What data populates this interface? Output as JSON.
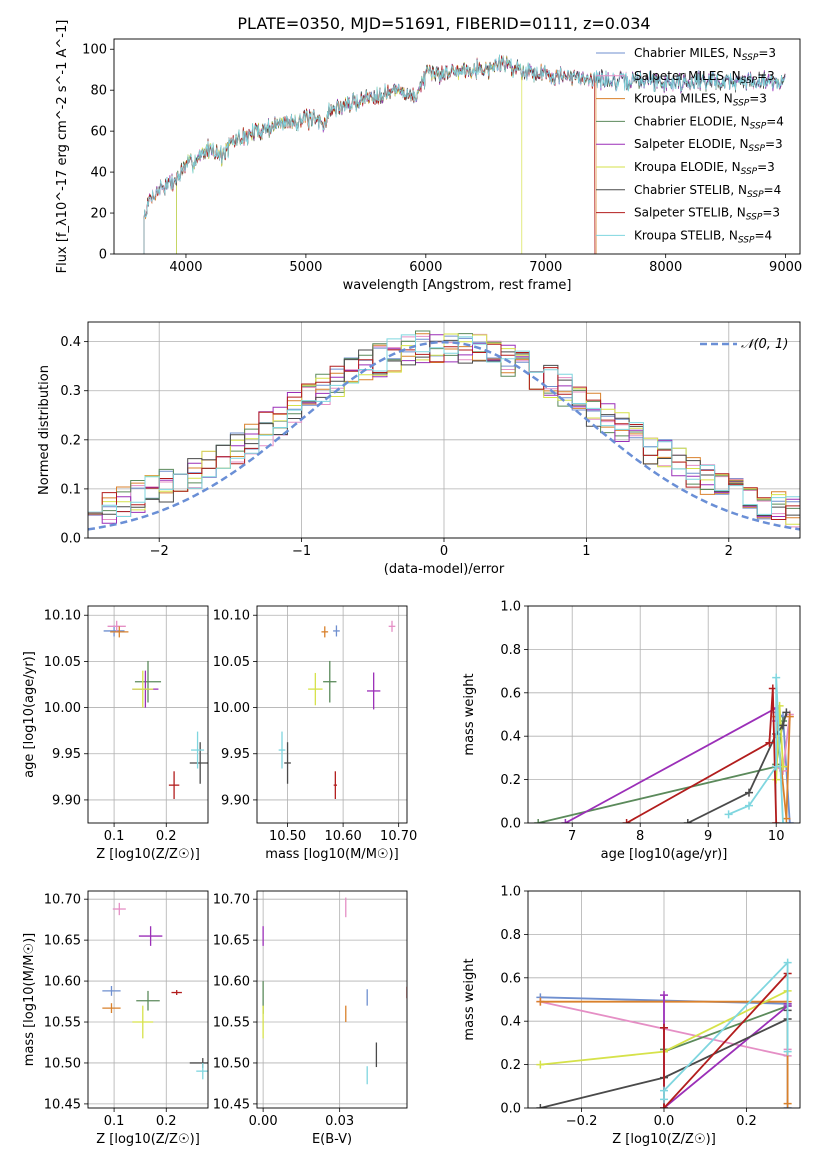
{
  "figure_title": "PLATE=0350, MJD=51691, FIBERID=0111, z=0.034",
  "colors": {
    "chabrier_miles": "#6f8fcf",
    "salpeter_miles": "#e58fc5",
    "kroupa_miles": "#d9812c",
    "chabrier_elodie": "#5b8a5b",
    "salpeter_elodie": "#9b2fb8",
    "kroupa_elodie": "#d6e24a",
    "chabrier_stelib": "#4a4a4a",
    "salpeter_stelib": "#b21d1d",
    "kroupa_stelib": "#7fd6df",
    "normal_curve": "#6a8fd6"
  },
  "legend_models": [
    {
      "imf": "Chabrier",
      "lib": "MILES",
      "nssp": "3",
      "color_key": "chabrier_miles"
    },
    {
      "imf": "Salpeter",
      "lib": "MILES",
      "nssp": "3",
      "color_key": "salpeter_miles"
    },
    {
      "imf": "Kroupa",
      "lib": "MILES",
      "nssp": "3",
      "color_key": "kroupa_miles"
    },
    {
      "imf": "Chabrier",
      "lib": "ELODIE",
      "nssp": "4",
      "color_key": "chabrier_elodie"
    },
    {
      "imf": "Salpeter",
      "lib": "ELODIE",
      "nssp": "3",
      "color_key": "salpeter_elodie"
    },
    {
      "imf": "Kroupa",
      "lib": "ELODIE",
      "nssp": "3",
      "color_key": "kroupa_elodie"
    },
    {
      "imf": "Chabrier",
      "lib": "STELIB",
      "nssp": "4",
      "color_key": "chabrier_stelib"
    },
    {
      "imf": "Salpeter",
      "lib": "STELIB",
      "nssp": "3",
      "color_key": "salpeter_stelib"
    },
    {
      "imf": "Kroupa",
      "lib": "STELIB",
      "nssp": "4",
      "color_key": "kroupa_stelib"
    }
  ],
  "chart_data": [
    {
      "id": "spectrum",
      "type": "line",
      "xlabel": "wavelength [Angstrom, rest frame]",
      "ylabel": "Flux [f_λ10^-17 erg cm^-2 s^-1 A^-1]",
      "xlim": [
        3400,
        9120
      ],
      "ylim": [
        0,
        105
      ],
      "xticks": [
        4000,
        5000,
        6000,
        7000,
        8000,
        9000
      ],
      "yticks": [
        0,
        20,
        40,
        60,
        80,
        100
      ],
      "grid": false,
      "legend_position": "right",
      "continuum": {
        "x": [
          3650,
          3700,
          3800,
          3900,
          4000,
          4100,
          4200,
          4300,
          4400,
          4600,
          4800,
          5000,
          5150,
          5200,
          5400,
          5600,
          5800,
          5900,
          6000,
          6200,
          6400,
          6560,
          6600,
          6800,
          7000,
          7200,
          7400,
          7600,
          7800,
          8000,
          8200,
          8400,
          8600,
          8800,
          9000
        ],
        "y": [
          18,
          27,
          33,
          35,
          43,
          47,
          52,
          48,
          55,
          60,
          64,
          66,
          64,
          70,
          74,
          78,
          80,
          76,
          87,
          89,
          91,
          90,
          94,
          90,
          88,
          86,
          86,
          84,
          85,
          84,
          84,
          85,
          84,
          85,
          84
        ]
      },
      "model_start_x": [
        3650,
        3650,
        3650,
        3920,
        3650,
        3920,
        3650,
        3650,
        3650
      ],
      "model_end_x": [
        9000,
        9000,
        7420,
        9000,
        9000,
        6800,
        9000,
        7410,
        9000
      ]
    },
    {
      "id": "residuals",
      "type": "step",
      "xlabel": "(data-model)/error",
      "ylabel": "Normed distribution",
      "xlim": [
        -2.5,
        2.5
      ],
      "ylim": [
        0,
        0.44
      ],
      "xticks": [
        -2,
        -1,
        0,
        1,
        2
      ],
      "yticks": [
        0.0,
        0.1,
        0.2,
        0.3,
        0.4
      ],
      "grid": true,
      "legend": [
        {
          "name": "𝒩(0, 1)",
          "style": "dashed",
          "color_key": "normal_curve"
        }
      ],
      "legend_position": "top-right",
      "bin_width": 0.1
    },
    {
      "id": "z-age",
      "type": "scatter",
      "xlabel": "Z [log10(Z/Z☉)]",
      "ylabel": "age [log10(age/yr)]",
      "xlim": [
        0.05,
        0.28
      ],
      "ylim": [
        9.875,
        10.11
      ],
      "xticks": [
        0.1,
        0.2
      ],
      "yticks": [
        9.9,
        9.95,
        10.0,
        10.05,
        10.1
      ],
      "grid": true,
      "points": [
        {
          "x": 0.1,
          "y": 10.083,
          "ex": 0.04,
          "ey": 0.012,
          "c": "chabrier_miles"
        },
        {
          "x": 0.105,
          "y": 10.088,
          "ex": 0.035,
          "ey": 0.012,
          "c": "salpeter_miles"
        },
        {
          "x": 0.11,
          "y": 10.082,
          "ex": 0.035,
          "ey": 0.012,
          "c": "kroupa_miles"
        },
        {
          "x": 0.165,
          "y": 10.028,
          "ex": 0.05,
          "ey": 0.045,
          "c": "chabrier_elodie"
        },
        {
          "x": 0.16,
          "y": 10.02,
          "ex": 0.05,
          "ey": 0.04,
          "c": "salpeter_elodie"
        },
        {
          "x": 0.155,
          "y": 10.02,
          "ex": 0.04,
          "ey": 0.04,
          "c": "kroupa_elodie"
        },
        {
          "x": 0.265,
          "y": 9.94,
          "ex": 0.04,
          "ey": 0.045,
          "c": "chabrier_stelib"
        },
        {
          "x": 0.215,
          "y": 9.916,
          "ex": 0.02,
          "ey": 0.03,
          "c": "salpeter_stelib"
        },
        {
          "x": 0.26,
          "y": 9.954,
          "ex": 0.025,
          "ey": 0.04,
          "c": "kroupa_stelib"
        }
      ]
    },
    {
      "id": "mass-age",
      "type": "scatter",
      "xlabel": "mass [log10(M/M☉)]",
      "ylabel": "",
      "xlim": [
        10.445,
        10.715
      ],
      "ylim": [
        9.875,
        10.11
      ],
      "xticks": [
        10.5,
        10.6,
        10.7
      ],
      "yticks": [
        9.9,
        9.95,
        10.0,
        10.05,
        10.1
      ],
      "grid": true,
      "points": [
        {
          "x": 10.588,
          "y": 10.083,
          "ex": 0.012,
          "ey": 0.012,
          "c": "chabrier_miles"
        },
        {
          "x": 10.688,
          "y": 10.088,
          "ex": 0.012,
          "ey": 0.012,
          "c": "salpeter_miles"
        },
        {
          "x": 10.567,
          "y": 10.082,
          "ex": 0.012,
          "ey": 0.012,
          "c": "kroupa_miles"
        },
        {
          "x": 10.576,
          "y": 10.028,
          "ex": 0.024,
          "ey": 0.045,
          "c": "chabrier_elodie"
        },
        {
          "x": 10.655,
          "y": 10.018,
          "ex": 0.024,
          "ey": 0.04,
          "c": "salpeter_elodie"
        },
        {
          "x": 10.55,
          "y": 10.02,
          "ex": 0.026,
          "ey": 0.035,
          "c": "kroupa_elodie"
        },
        {
          "x": 10.5,
          "y": 9.94,
          "ex": 0.012,
          "ey": 0.045,
          "c": "chabrier_stelib"
        },
        {
          "x": 10.586,
          "y": 9.916,
          "ex": 0.006,
          "ey": 0.03,
          "c": "salpeter_stelib"
        },
        {
          "x": 10.49,
          "y": 9.954,
          "ex": 0.012,
          "ey": 0.04,
          "c": "kroupa_stelib"
        }
      ]
    },
    {
      "id": "age-weight",
      "type": "line",
      "xlabel": "age [log10(age/yr)]",
      "ylabel": "mass weight",
      "xlim": [
        6.35,
        10.35
      ],
      "ylim": [
        0.0,
        1.0
      ],
      "xticks": [
        7,
        8,
        9,
        10
      ],
      "yticks": [
        0.0,
        0.2,
        0.4,
        0.6,
        0.8,
        1.0
      ],
      "grid": true,
      "series": [
        {
          "c": "chabrier_miles",
          "x": [
            10.0,
            10.1,
            10.2
          ],
          "y": [
            0.51,
            0.49,
            0.0
          ]
        },
        {
          "c": "salpeter_miles",
          "x": [
            10.0,
            10.1,
            10.2
          ],
          "y": [
            0.26,
            0.24,
            0.5
          ]
        },
        {
          "c": "kroupa_miles",
          "x": [
            10.0,
            10.15,
            10.2
          ],
          "y": [
            0.49,
            0.02,
            0.49
          ]
        },
        {
          "c": "chabrier_elodie",
          "x": [
            6.5,
            10.0,
            10.0,
            10.1
          ],
          "y": [
            0.0,
            0.26,
            0.27,
            0.47
          ]
        },
        {
          "c": "salpeter_elodie",
          "x": [
            6.9,
            10.0,
            10.0
          ],
          "y": [
            0.0,
            0.53,
            0.47
          ]
        },
        {
          "c": "kroupa_elodie",
          "x": [
            10.0,
            10.05,
            10.1
          ],
          "y": [
            0.2,
            0.54,
            0.26
          ]
        },
        {
          "c": "chabrier_stelib",
          "x": [
            8.7,
            9.6,
            10.0,
            10.1,
            10.15
          ],
          "y": [
            0.0,
            0.14,
            0.41,
            0.45,
            0.51
          ]
        },
        {
          "c": "salpeter_stelib",
          "x": [
            7.8,
            9.9,
            9.95,
            10.0
          ],
          "y": [
            0.0,
            0.37,
            0.62,
            0.0
          ]
        },
        {
          "c": "kroupa_stelib",
          "x": [
            9.3,
            9.6,
            10.0,
            10.0,
            10.1
          ],
          "y": [
            0.04,
            0.08,
            0.26,
            0.67,
            0.0
          ]
        }
      ]
    },
    {
      "id": "z-mass",
      "type": "scatter",
      "xlabel": "Z [log10(Z/Z☉)]",
      "ylabel": "mass [log10(M/M☉)]",
      "xlim": [
        0.05,
        0.28
      ],
      "ylim": [
        10.445,
        10.71
      ],
      "xticks": [
        0.1,
        0.2
      ],
      "yticks": [
        10.45,
        10.5,
        10.55,
        10.6,
        10.65,
        10.7
      ],
      "grid": true,
      "points": [
        {
          "x": 0.095,
          "y": 10.588,
          "ex": 0.035,
          "ey": 0.012,
          "c": "chabrier_miles"
        },
        {
          "x": 0.11,
          "y": 10.688,
          "ex": 0.025,
          "ey": 0.015,
          "c": "salpeter_miles"
        },
        {
          "x": 0.095,
          "y": 10.567,
          "ex": 0.035,
          "ey": 0.012,
          "c": "kroupa_miles"
        },
        {
          "x": 0.165,
          "y": 10.576,
          "ex": 0.045,
          "ey": 0.024,
          "c": "chabrier_elodie"
        },
        {
          "x": 0.17,
          "y": 10.655,
          "ex": 0.045,
          "ey": 0.024,
          "c": "salpeter_elodie"
        },
        {
          "x": 0.155,
          "y": 10.55,
          "ex": 0.04,
          "ey": 0.04,
          "c": "kroupa_elodie"
        },
        {
          "x": 0.27,
          "y": 10.5,
          "ex": 0.05,
          "ey": 0.012,
          "c": "chabrier_stelib"
        },
        {
          "x": 0.22,
          "y": 10.586,
          "ex": 0.02,
          "ey": 0.006,
          "c": "salpeter_stelib"
        },
        {
          "x": 0.27,
          "y": 10.49,
          "ex": 0.025,
          "ey": 0.02,
          "c": "kroupa_stelib"
        }
      ]
    },
    {
      "id": "ebv-mass",
      "type": "scatter",
      "xlabel": "E(B-V)",
      "ylabel": "",
      "xlim": [
        -0.002,
        0.047
      ],
      "ylim": [
        10.445,
        10.71
      ],
      "xticks": [
        0.0,
        0.025
      ],
      "yticks": [
        10.45,
        10.5,
        10.55,
        10.6,
        10.65,
        10.7
      ],
      "grid": true,
      "points": [
        {
          "x": 0.034,
          "y": 10.58,
          "ex": 0.0,
          "ey": 0.02,
          "c": "chabrier_miles"
        },
        {
          "x": 0.027,
          "y": 10.69,
          "ex": 0.0,
          "ey": 0.024,
          "c": "salpeter_miles"
        },
        {
          "x": 0.027,
          "y": 10.56,
          "ex": 0.0,
          "ey": 0.02,
          "c": "kroupa_miles"
        },
        {
          "x": 0.0,
          "y": 10.58,
          "ex": 0.0,
          "ey": 0.04,
          "c": "chabrier_elodie"
        },
        {
          "x": 0.0,
          "y": 10.655,
          "ex": 0.0,
          "ey": 0.024,
          "c": "salpeter_elodie"
        },
        {
          "x": 0.0,
          "y": 10.55,
          "ex": 0.0,
          "ey": 0.04,
          "c": "kroupa_elodie"
        },
        {
          "x": 0.037,
          "y": 10.51,
          "ex": 0.0,
          "ey": 0.03,
          "c": "chabrier_stelib"
        },
        {
          "x": 0.047,
          "y": 10.586,
          "ex": 0.0,
          "ey": 0.014,
          "c": "salpeter_stelib"
        },
        {
          "x": 0.034,
          "y": 10.485,
          "ex": 0.0,
          "ey": 0.022,
          "c": "kroupa_stelib"
        }
      ]
    },
    {
      "id": "z-weight",
      "type": "line",
      "xlabel": "Z [log10(Z/Z☉)]",
      "ylabel": "mass weight",
      "xlim": [
        -0.33,
        0.33
      ],
      "ylim": [
        0.0,
        1.0
      ],
      "xticks": [
        -0.2,
        0.0,
        0.2
      ],
      "yticks": [
        0.0,
        0.2,
        0.4,
        0.6,
        0.8,
        1.0
      ],
      "grid": true,
      "series": [
        {
          "c": "chabrier_miles",
          "x": [
            -0.3,
            0.3,
            0.3
          ],
          "y": [
            0.51,
            0.48,
            0.0
          ]
        },
        {
          "c": "salpeter_miles",
          "x": [
            -0.3,
            0.3,
            0.3
          ],
          "y": [
            0.49,
            0.24,
            0.27
          ]
        },
        {
          "c": "kroupa_miles",
          "x": [
            -0.3,
            0.3,
            0.3
          ],
          "y": [
            0.49,
            0.49,
            0.02
          ]
        },
        {
          "c": "chabrier_elodie",
          "x": [
            0.0,
            0.0,
            0.3
          ],
          "y": [
            0.27,
            0.26,
            0.47
          ]
        },
        {
          "c": "salpeter_elodie",
          "x": [
            0.0,
            0.0,
            0.3,
            0.3
          ],
          "y": [
            0.52,
            0.0,
            0.47,
            0.48
          ]
        },
        {
          "c": "kroupa_elodie",
          "x": [
            -0.3,
            0.0,
            0.3
          ],
          "y": [
            0.2,
            0.26,
            0.54
          ]
        },
        {
          "c": "chabrier_stelib",
          "x": [
            -0.3,
            0.0,
            0.3,
            0.3
          ],
          "y": [
            0.0,
            0.14,
            0.41,
            0.45
          ]
        },
        {
          "c": "salpeter_stelib",
          "x": [
            0.0,
            0.0,
            0.3
          ],
          "y": [
            0.37,
            0.0,
            0.62
          ]
        },
        {
          "c": "kroupa_stelib",
          "x": [
            0.0,
            0.0,
            0.3,
            0.3
          ],
          "y": [
            0.04,
            0.08,
            0.67,
            0.26
          ]
        }
      ]
    }
  ]
}
